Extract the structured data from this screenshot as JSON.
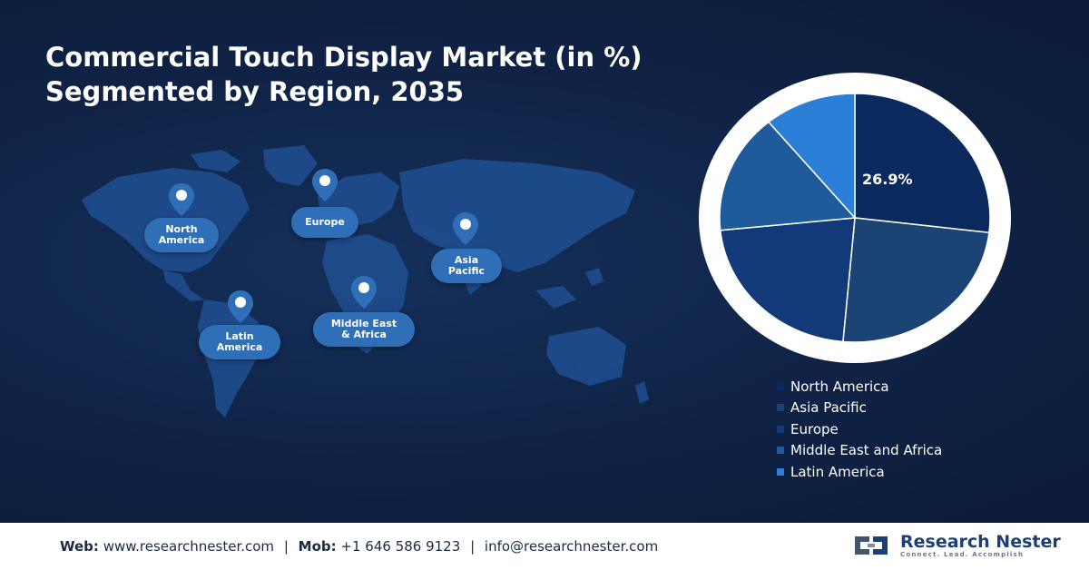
{
  "title": {
    "line1": "Commercial Touch Display Market (in %)",
    "line2": "Segmented by Region, 2035"
  },
  "map": {
    "regions": [
      {
        "line1": "North",
        "line2": "America"
      },
      {
        "line1": "Europe",
        "line2": ""
      },
      {
        "line1": "Asia",
        "line2": "Pacific"
      },
      {
        "line1": "Latin",
        "line2": "America"
      },
      {
        "line1": "Middle East",
        "line2": "& Africa"
      }
    ],
    "icon": "location-pin-icon"
  },
  "chart_data": {
    "type": "pie",
    "categories": [
      "North America",
      "Asia Pacific",
      "Europe",
      "Middle East and Africa",
      "Latin America"
    ],
    "values": [
      26.9,
      24.5,
      22.0,
      15.6,
      11.0
    ],
    "colors": [
      "#0a2a5e",
      "#1b4475",
      "#123a78",
      "#1f5a9a",
      "#2b7fd6"
    ],
    "data_labels": [
      "26.9%",
      "",
      "",
      "",
      ""
    ],
    "start_angle_deg": 0,
    "direction": "clockwise",
    "legend_position": "bottom-right"
  },
  "footer": {
    "web_label": "Web:",
    "web_value": "www.researchnester.com",
    "mob_label": "Mob:",
    "mob_value": "+1 646 586 9123",
    "email_value": "info@researchnester.com",
    "separator": "|",
    "logo_name": "Research Nester",
    "logo_tagline": "Connect. Lead. Accomplish"
  }
}
